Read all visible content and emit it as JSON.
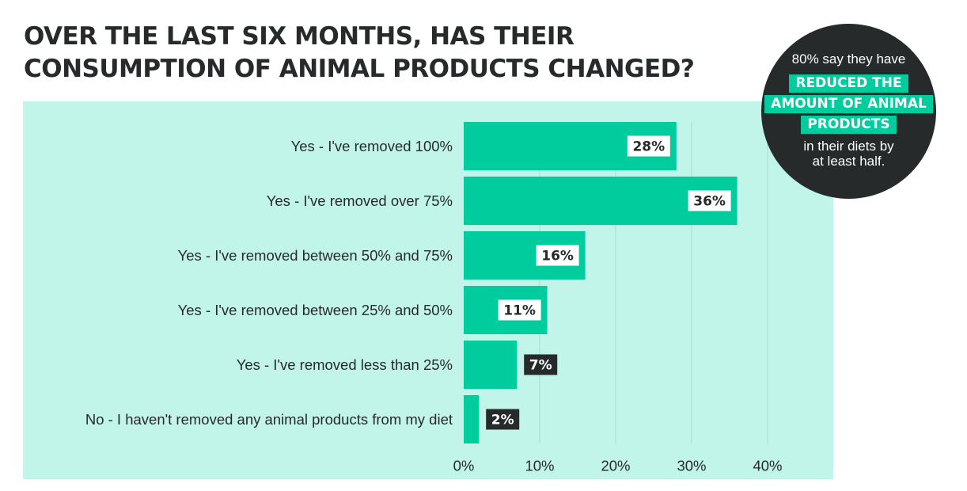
{
  "title": {
    "line1": "OVER THE LAST SIX MONTHS, HAS THEIR",
    "line2": "CONSUMPTION OF ANIMAL PRODUCTS CHANGED?"
  },
  "callout": {
    "intro": "80% say they have",
    "highlight_lines": [
      "REDUCED THE",
      "AMOUNT OF ANIMAL",
      "PRODUCTS"
    ],
    "outro_lines": [
      "in their diets by",
      "at least half."
    ]
  },
  "colors": {
    "bar": "#00cc9e",
    "panel": "#c2f5e9",
    "dark": "#262a2b",
    "grid": "#a6dccd",
    "text": "#262a2b"
  },
  "chart_data": {
    "type": "bar",
    "orientation": "horizontal",
    "title": "OVER THE LAST SIX MONTHS, HAS THEIR CONSUMPTION OF ANIMAL PRODUCTS CHANGED?",
    "categories": [
      "Yes - I've removed 100%",
      "Yes - I've removed over 75%",
      "Yes - I've removed between 50% and 75%",
      "Yes - I've removed between 25% and 50%",
      "Yes - I've removed less than 25%",
      "No - I haven't removed any animal products from my diet"
    ],
    "values": [
      28,
      36,
      16,
      11,
      7,
      2
    ],
    "value_labels": [
      "28%",
      "36%",
      "16%",
      "11%",
      "7%",
      "2%"
    ],
    "xlim": [
      0,
      40
    ],
    "xticks": [
      0,
      10,
      20,
      30,
      40
    ],
    "xtick_labels": [
      "0%",
      "10%",
      "20%",
      "30%",
      "40%"
    ],
    "xlabel": "",
    "ylabel": "",
    "grid": true,
    "legend": "none"
  }
}
